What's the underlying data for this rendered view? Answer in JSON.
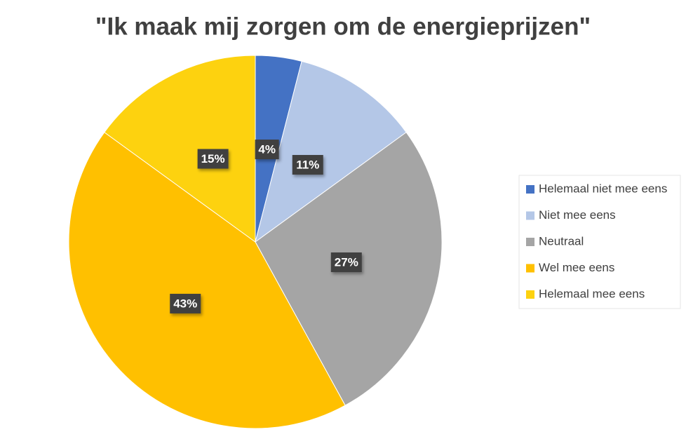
{
  "chart_data": {
    "type": "pie",
    "title": "\"Ik maak mij zorgen om de energieprijzen\"",
    "categories": [
      "Helemaal niet mee eens",
      "Niet mee eens",
      "Neutraal",
      "Wel mee eens",
      "Helemaal mee eens"
    ],
    "values": [
      4,
      11,
      27,
      43,
      15
    ],
    "value_labels": [
      "4%",
      "11%",
      "27%",
      "43%",
      "15%"
    ],
    "colors": [
      "#4472c4",
      "#b4c7e7",
      "#a5a5a5",
      "#ffc000",
      "#fdd20f"
    ],
    "legend": "right"
  }
}
